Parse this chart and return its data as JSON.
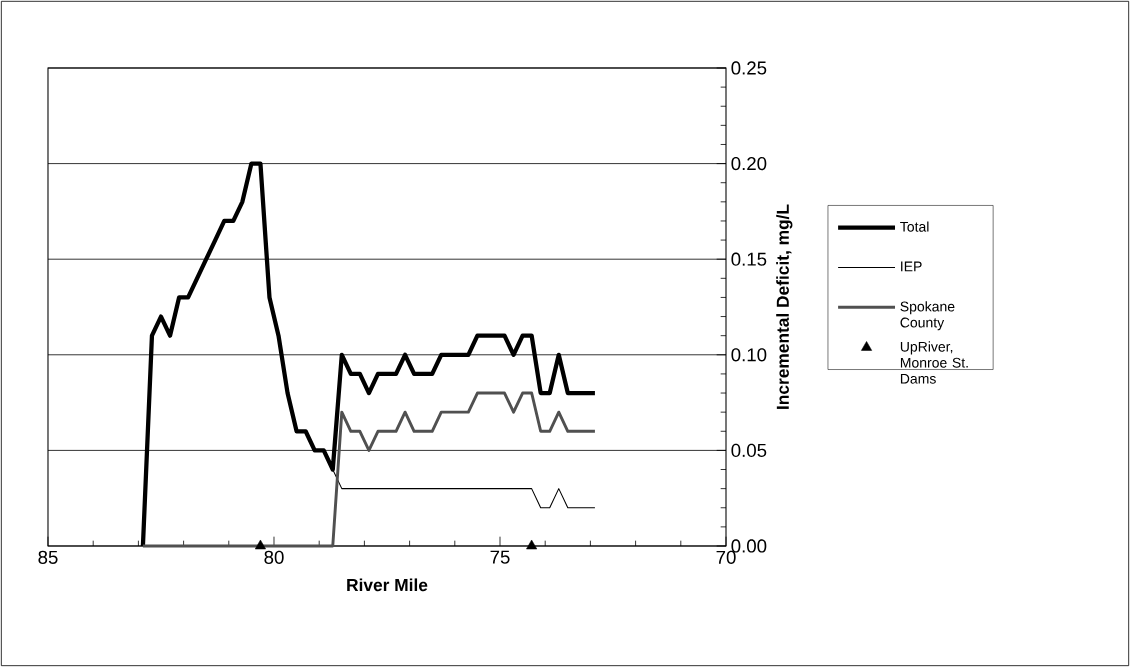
{
  "chart_data": {
    "type": "line",
    "xlabel": "River Mile",
    "ylabel": "Incremental Deficit, mg/L",
    "x": [
      82.9,
      82.7,
      82.5,
      82.3,
      82.1,
      81.9,
      81.7,
      81.5,
      81.3,
      81.1,
      80.9,
      80.7,
      80.5,
      80.3,
      80.1,
      79.9,
      79.7,
      79.5,
      79.3,
      79.1,
      78.9,
      78.7,
      78.5,
      78.3,
      78.1,
      77.9,
      77.7,
      77.5,
      77.3,
      77.1,
      76.9,
      76.7,
      76.5,
      76.3,
      76.1,
      75.9,
      75.7,
      75.5,
      75.3,
      75.1,
      74.9,
      74.7,
      74.5,
      74.3,
      74.1,
      73.9,
      73.7,
      73.5,
      73.3,
      73.1,
      72.9
    ],
    "series": [
      {
        "name": "Total",
        "color": "#000000",
        "values": [
          0,
          0.11,
          0.12,
          0.11,
          0.13,
          0.13,
          0.14,
          0.15,
          0.16,
          0.17,
          0.17,
          0.18,
          0.2,
          0.2,
          0.13,
          0.11,
          0.08,
          0.06,
          0.06,
          0.05,
          0.05,
          0.04,
          0.1,
          0.09,
          0.09,
          0.08,
          0.09,
          0.09,
          0.09,
          0.1,
          0.09,
          0.09,
          0.09,
          0.1,
          0.1,
          0.1,
          0.1,
          0.11,
          0.11,
          0.11,
          0.11,
          0.1,
          0.11,
          0.11,
          0.08,
          0.08,
          0.1,
          0.08,
          0.08,
          0.08,
          0.08
        ]
      },
      {
        "name": "IEP",
        "color": "#000000",
        "values": [
          0,
          0.11,
          0.12,
          0.11,
          0.13,
          0.13,
          0.14,
          0.15,
          0.16,
          0.17,
          0.17,
          0.18,
          0.2,
          0.2,
          0.13,
          0.11,
          0.08,
          0.06,
          0.06,
          0.05,
          0.05,
          0.04,
          0.03,
          0.03,
          0.03,
          0.03,
          0.03,
          0.03,
          0.03,
          0.03,
          0.03,
          0.03,
          0.03,
          0.03,
          0.03,
          0.03,
          0.03,
          0.03,
          0.03,
          0.03,
          0.03,
          0.03,
          0.03,
          0.03,
          0.02,
          0.02,
          0.03,
          0.02,
          0.02,
          0.02,
          0.02
        ]
      },
      {
        "name": "Spokane County",
        "color": "#505050",
        "values": [
          0,
          0,
          0,
          0,
          0,
          0,
          0,
          0,
          0,
          0,
          0,
          0,
          0,
          0,
          0,
          0,
          0,
          0,
          0,
          0,
          0,
          0,
          0.07,
          0.06,
          0.06,
          0.05,
          0.06,
          0.06,
          0.06,
          0.07,
          0.06,
          0.06,
          0.06,
          0.07,
          0.07,
          0.07,
          0.07,
          0.08,
          0.08,
          0.08,
          0.08,
          0.07,
          0.08,
          0.08,
          0.06,
          0.06,
          0.07,
          0.06,
          0.06,
          0.06,
          0.06
        ]
      },
      {
        "name": "UpRiver, Monroe St. Dams",
        "type": "scatter",
        "marker": "triangle",
        "color": "#000000",
        "x": [
          80.3,
          74.3
        ],
        "values": [
          0,
          0
        ]
      }
    ],
    "xlim": [
      85,
      70
    ],
    "xticks": [
      85,
      80,
      75,
      70
    ],
    "ylim": [
      0,
      0.25
    ],
    "yticks": [
      {
        "value": 0,
        "label": "0.00"
      },
      {
        "value": 0.05,
        "label": "0.05"
      },
      {
        "value": 0.1,
        "label": "0.10"
      },
      {
        "value": 0.15,
        "label": "0.15"
      },
      {
        "value": 0.2,
        "label": "0.20"
      },
      {
        "value": 0.25,
        "label": "0.25"
      }
    ],
    "grid": "y",
    "legend": "right",
    "marker": "none",
    "line_style": "solid"
  }
}
